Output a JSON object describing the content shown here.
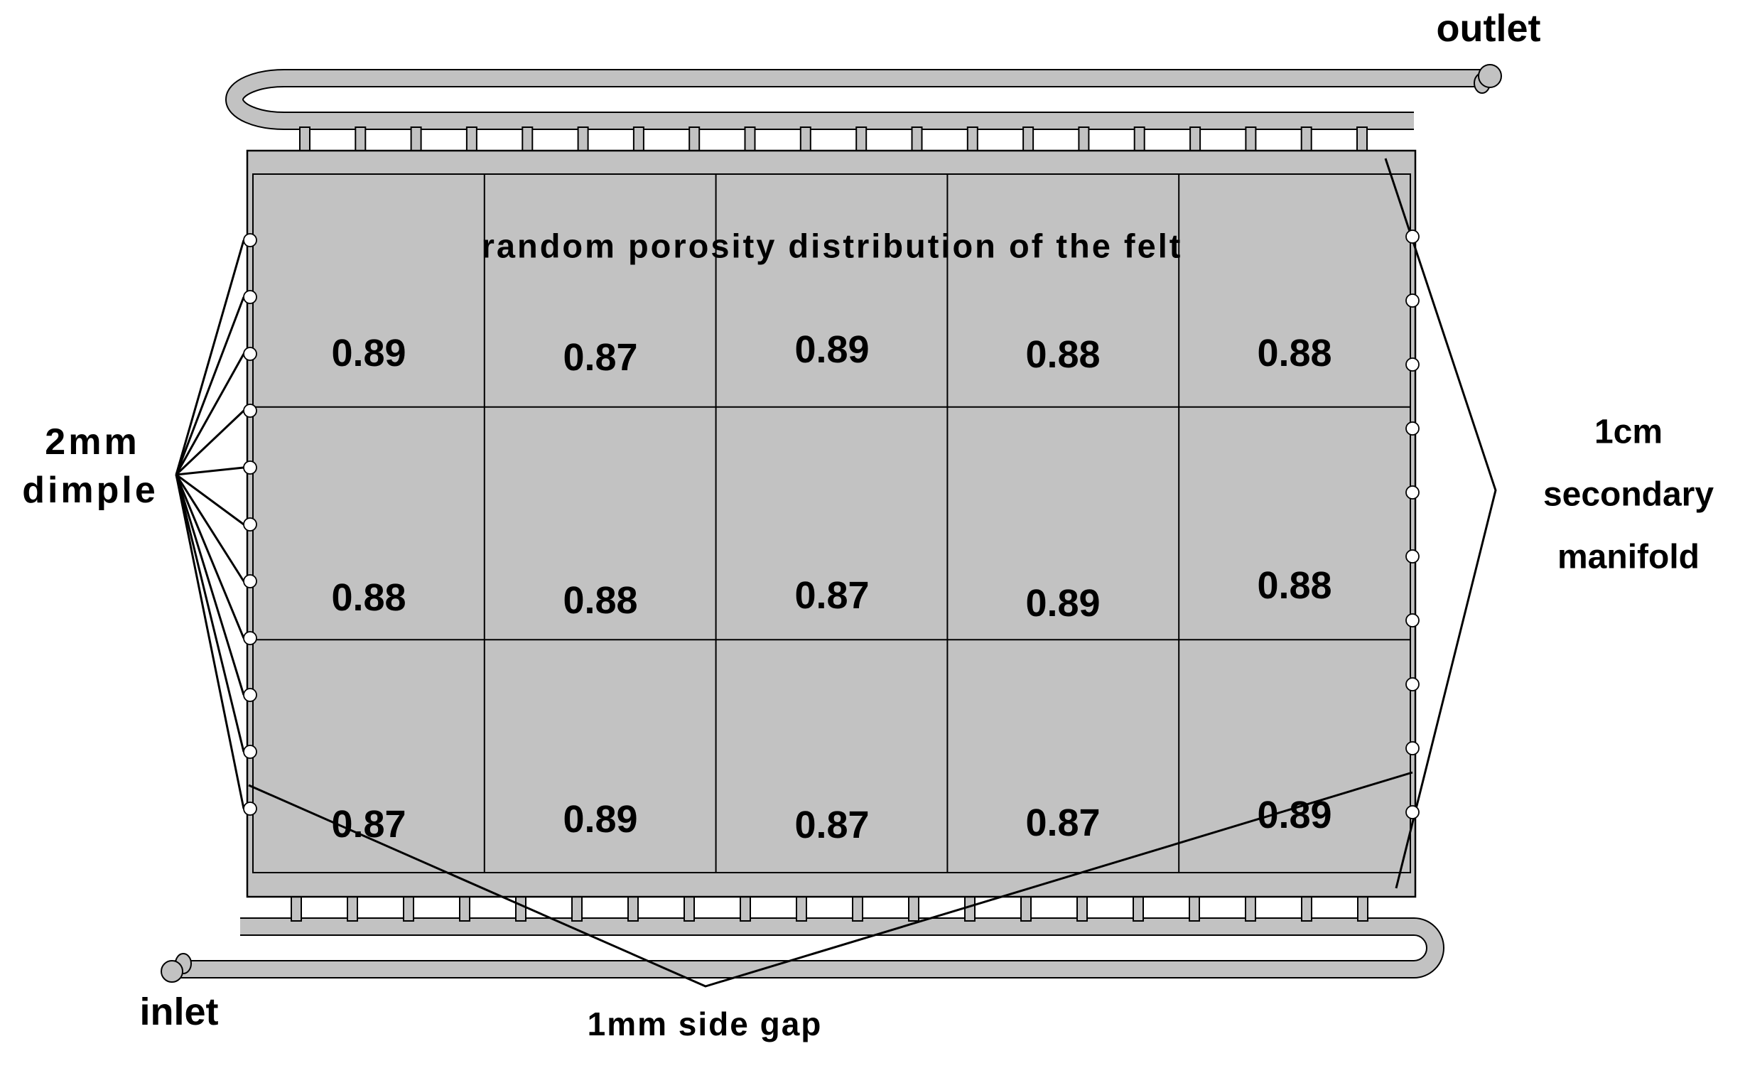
{
  "diagram": {
    "title": "random  porosity distribution of the felt",
    "outlet_label": "outlet",
    "inlet_label": "inlet",
    "dimple_label_line1": "2mm",
    "dimple_label_line2": "dimple",
    "manifold_label_line1": "1cm",
    "manifold_label_line2": "secondary",
    "manifold_label_line3": "manifold",
    "side_gap_label": "1mm side gap",
    "porosity_grid": {
      "rows": 3,
      "cols": 5,
      "values": [
        [
          "0.89",
          "0.87",
          "0.89",
          "0.88",
          "0.88"
        ],
        [
          "0.88",
          "0.88",
          "0.87",
          "0.89",
          "0.88"
        ],
        [
          "0.87",
          "0.89",
          "0.87",
          "0.87",
          "0.89"
        ]
      ]
    },
    "colors": {
      "body": "#c2c2c2",
      "line": "#000000",
      "background": "#ffffff"
    }
  }
}
